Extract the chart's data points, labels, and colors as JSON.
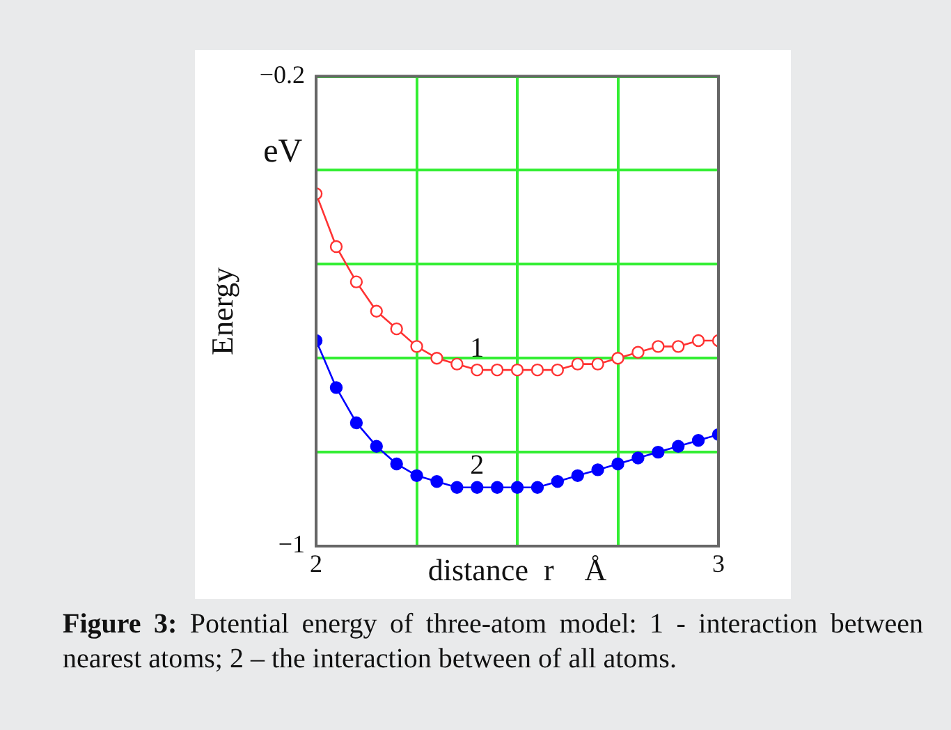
{
  "chart_data": {
    "type": "line",
    "xlabel": "distance  r    Å",
    "ylabel": "Energy",
    "annotations": [
      "eV",
      "Figure 3:",
      "Potential energy of three-atom model: 1 - interaction between nearest atoms; 2 – the interaction between of all atoms."
    ],
    "x": [
      2,
      2.05,
      2.1,
      2.15,
      2.2,
      2.25,
      2.3,
      2.35,
      2.4,
      2.45,
      2.5,
      2.55,
      2.6,
      2.65,
      2.7,
      2.75,
      2.8,
      2.85,
      2.9,
      2.95,
      3
    ],
    "series": [
      {
        "name": "1",
        "color": "#ff3333",
        "values": [
          -0.4,
          -0.49,
          -0.55,
          -0.6,
          -0.63,
          -0.66,
          -0.68,
          -0.69,
          -0.7,
          -0.7,
          -0.7,
          -0.7,
          -0.7,
          -0.69,
          -0.69,
          -0.68,
          -0.67,
          -0.66,
          -0.66,
          -0.65,
          -0.65
        ]
      },
      {
        "name": "2",
        "color": "#0000ff",
        "values": [
          -0.65,
          -0.73,
          -0.79,
          -0.83,
          -0.86,
          -0.88,
          -0.89,
          -0.9,
          -0.9,
          -0.9,
          -0.9,
          -0.9,
          -0.89,
          -0.88,
          -0.87,
          -0.86,
          -0.85,
          -0.84,
          -0.83,
          -0.82,
          -0.81
        ]
      }
    ],
    "xlim": [
      2,
      3
    ],
    "xticks": [
      2,
      {
        "value": 2.25,
        "label": null
      },
      {
        "value": 2.5,
        "label": null
      },
      {
        "value": 2.75,
        "label": null
      },
      3
    ],
    "ylim": [
      -1,
      -0.2
    ],
    "yticks": [
      -1,
      {
        "value": -0.84,
        "label": null
      },
      {
        "value": -0.68,
        "label": null
      },
      {
        "value": -0.52,
        "label": null
      },
      {
        "value": -0.36,
        "label": null
      },
      -0.2
    ],
    "grid": true,
    "marker": "circle",
    "line_style": "solid"
  }
}
